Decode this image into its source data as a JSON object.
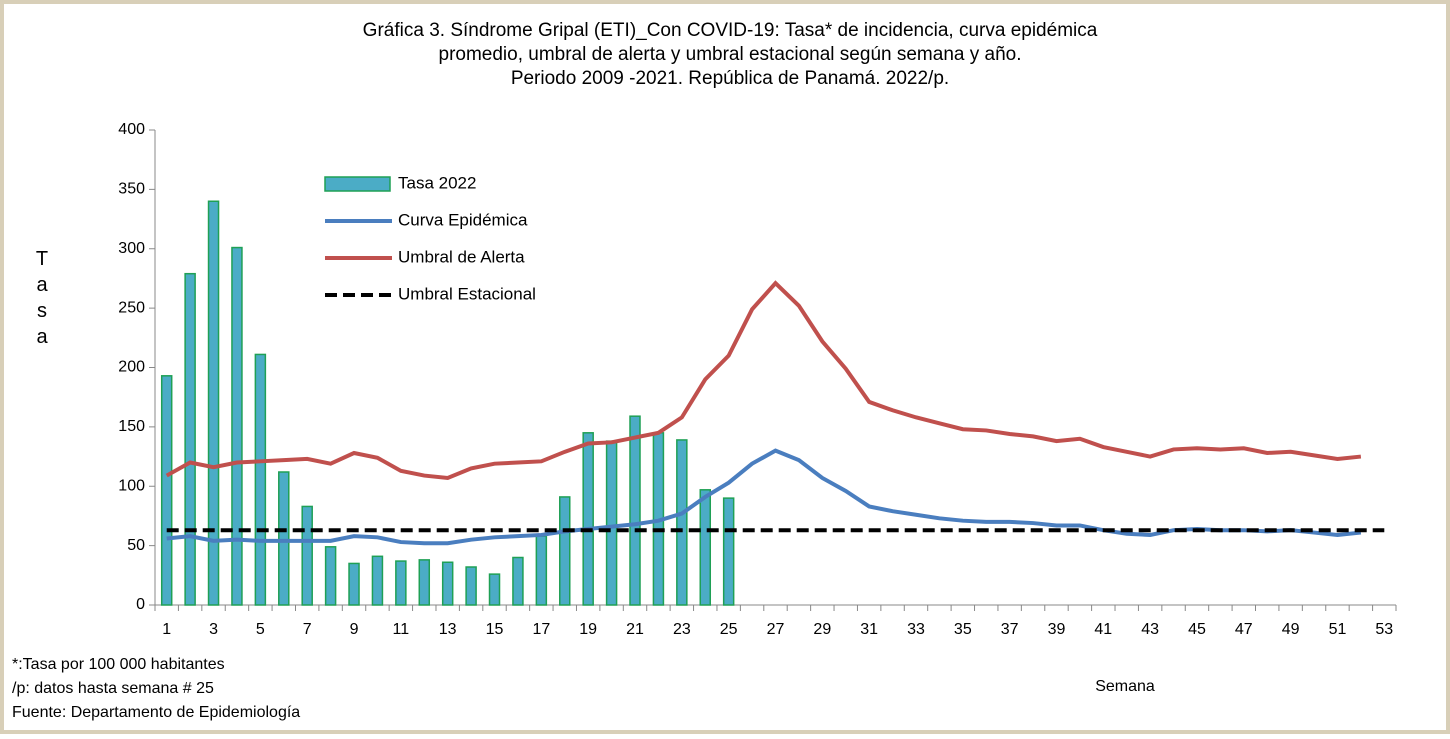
{
  "chart_data": {
    "type": "bar_line",
    "title": [
      "Gráfica 3. Síndrome Gripal (ETI)_Con COVID-19: Tasa* de incidencia, curva epidémica",
      "promedio, umbral de alerta y umbral estacional según semana y año.",
      "Periodo 2009 -2021.  República de Panamá. 2022/p."
    ],
    "ylabel": "Tasa",
    "xlabel": "Semana",
    "notes": [
      "*:Tasa por 100 000 habitantes",
      "/p: datos hasta semana # 25",
      "Fuente: Departamento de Epidemiología"
    ],
    "categories": [
      1,
      null,
      3,
      null,
      5,
      null,
      7,
      null,
      9,
      null,
      11,
      null,
      13,
      null,
      15,
      null,
      17,
      null,
      19,
      null,
      21,
      null,
      23,
      null,
      25,
      null,
      27,
      null,
      29,
      null,
      31,
      null,
      33,
      null,
      35,
      null,
      37,
      null,
      39,
      null,
      41,
      null,
      43,
      null,
      45,
      null,
      47,
      null,
      49,
      null,
      51,
      null,
      53
    ],
    "series": [
      {
        "name": "Tasa 2022",
        "kind": "bar",
        "color": "#4bacc6",
        "edge": "#1fa055",
        "values": [
          193,
          279,
          340,
          301,
          211,
          112,
          83,
          49,
          35,
          41,
          37,
          38,
          36,
          32,
          26,
          40,
          58,
          91,
          145,
          138,
          159,
          145,
          139,
          97,
          90,
          null,
          null,
          null,
          null,
          null,
          null,
          null,
          null,
          null,
          null,
          null,
          null,
          null,
          null,
          null,
          null,
          null,
          null,
          null,
          null,
          null,
          null,
          null,
          null,
          null,
          null,
          null,
          null
        ]
      },
      {
        "name": "Curva Epidémica",
        "kind": "line",
        "color": "#4a7ebf",
        "style": "solid",
        "values": [
          56,
          58,
          54,
          55,
          54,
          54,
          54,
          54,
          58,
          57,
          53,
          52,
          52,
          55,
          57,
          58,
          59,
          62,
          64,
          66,
          68,
          71,
          77,
          91,
          103,
          119,
          130,
          122,
          107,
          96,
          83,
          79,
          76,
          73,
          71,
          70,
          70,
          69,
          67,
          67,
          63,
          60,
          59,
          63,
          64,
          63,
          63,
          62,
          63,
          61,
          59,
          61,
          null
        ]
      },
      {
        "name": "Umbral de Alerta",
        "kind": "line",
        "color": "#c0504d",
        "style": "solid",
        "values": [
          109,
          120,
          116,
          120,
          121,
          122,
          123,
          119,
          128,
          124,
          113,
          109,
          107,
          115,
          119,
          120,
          121,
          129,
          136,
          137,
          141,
          145,
          158,
          190,
          210,
          249,
          271,
          252,
          222,
          199,
          171,
          164,
          158,
          153,
          148,
          147,
          144,
          142,
          138,
          140,
          133,
          129,
          125,
          131,
          132,
          131,
          132,
          128,
          129,
          126,
          123,
          125,
          null
        ]
      },
      {
        "name": "Umbral Estacional",
        "kind": "line",
        "color": "#000000",
        "style": "dashed",
        "values": [
          63,
          63,
          63,
          63,
          63,
          63,
          63,
          63,
          63,
          63,
          63,
          63,
          63,
          63,
          63,
          63,
          63,
          63,
          63,
          63,
          63,
          63,
          63,
          63,
          63,
          63,
          63,
          63,
          63,
          63,
          63,
          63,
          63,
          63,
          63,
          63,
          63,
          63,
          63,
          63,
          63,
          63,
          63,
          63,
          63,
          63,
          63,
          63,
          63,
          63,
          63,
          63,
          63
        ]
      }
    ],
    "ylim": [
      0,
      400
    ],
    "yticks": [
      0,
      50,
      100,
      150,
      200,
      250,
      300,
      350,
      400
    ],
    "grid": false
  }
}
